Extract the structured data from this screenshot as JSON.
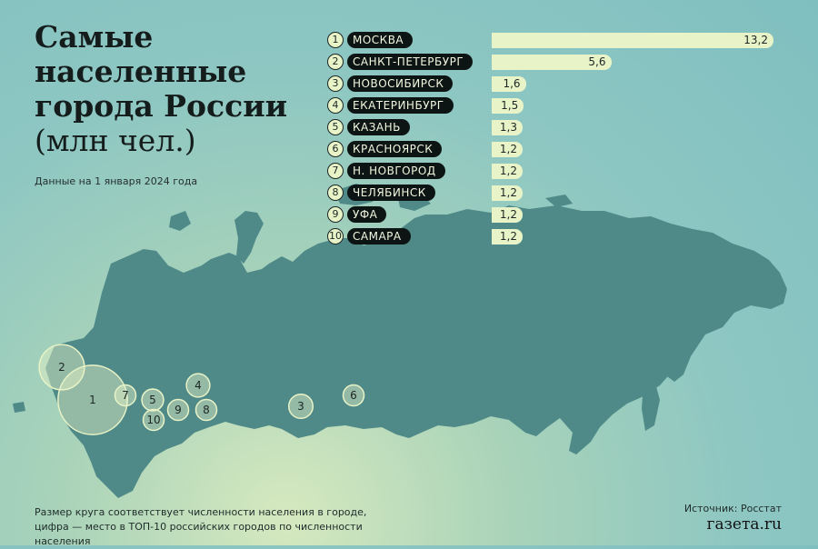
{
  "header": {
    "title_line1": "Самые",
    "title_line2": "населенные",
    "title_line3": "города России",
    "title_unit": "(млн чел.)",
    "subtitle": "Данные на 1 января 2024 года"
  },
  "footer": {
    "note_line1": "Размер круга соответствует численности населения в городе,",
    "note_line2": "цифра — место в ТОП-10 российских городов по численности населения",
    "source": "Источник: Росстат",
    "logo": "газета.ru"
  },
  "colors": {
    "land": "#4f8a89",
    "bar": "#e8f3c7",
    "pill": "#0d1414",
    "circle": "#e8f3c7"
  },
  "chart_data": {
    "type": "bar",
    "orientation": "horizontal",
    "title": "Самые населенные города России (млн чел.)",
    "categories": [
      "МОСКВА",
      "САНКТ-ПЕТЕРБУРГ",
      "НОВОСИБИРСК",
      "ЕКАТЕРИНБУРГ",
      "КАЗАНЬ",
      "КРАСНОЯРСК",
      "Н. НОВГОРОД",
      "ЧЕЛЯБИНСК",
      "УФА",
      "САМАРА"
    ],
    "ranks": [
      "1",
      "2",
      "3",
      "4",
      "5",
      "6",
      "7",
      "8",
      "9",
      "10"
    ],
    "values": [
      13.2,
      5.6,
      1.6,
      1.5,
      1.3,
      1.2,
      1.2,
      1.2,
      1.2,
      1.2
    ],
    "value_labels": [
      "13,2",
      "5,6",
      "1,6",
      "1,5",
      "1,3",
      "1,2",
      "1,2",
      "1,2",
      "1,2",
      "1,2"
    ],
    "xlim": [
      0,
      13.2
    ]
  }
}
